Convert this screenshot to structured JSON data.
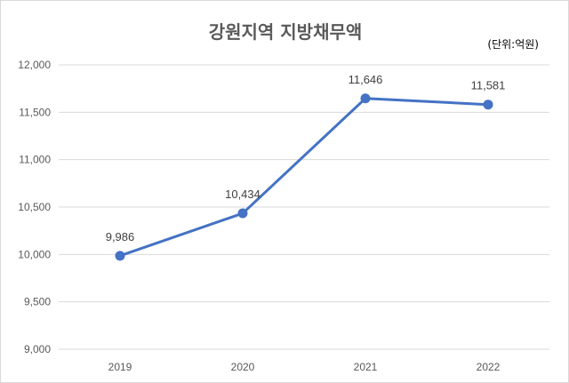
{
  "chart_data": {
    "type": "line",
    "title": "강원지역 지방채무액",
    "unit_note": "(단위:억원)",
    "categories": [
      "2019",
      "2020",
      "2021",
      "2022"
    ],
    "series": [
      {
        "values": [
          9986,
          10434,
          11646,
          11581
        ],
        "data_labels": [
          "9,986",
          "10,434",
          "11,646",
          "11,581"
        ]
      }
    ],
    "ylim": [
      9000,
      12000
    ],
    "y_ticks": [
      9000,
      9500,
      10000,
      10500,
      11000,
      11500,
      12000
    ],
    "y_tick_labels": [
      "9,000",
      "9,500",
      "10,000",
      "10,500",
      "11,000",
      "11,500",
      "12,000"
    ],
    "grid": true,
    "legend": "none",
    "colors": {
      "line": "#4472c4",
      "grid": "#d9d9d9",
      "title": "#595959"
    }
  }
}
